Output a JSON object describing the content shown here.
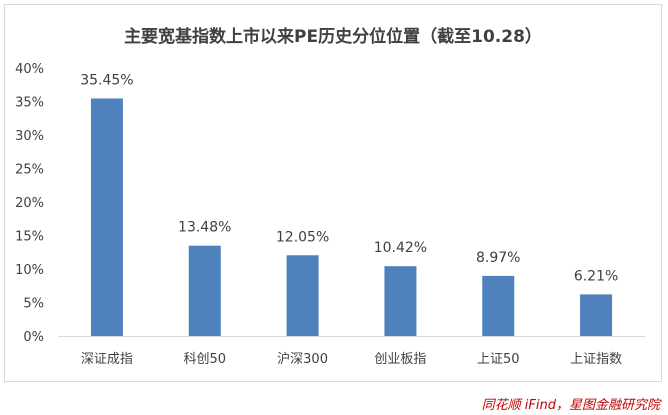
{
  "chart_data": {
    "type": "bar",
    "title": "主要宽基指数上市以来PE历史分位位置（截至10.28）",
    "categories": [
      "深证成指",
      "科创50",
      "沪深300",
      "创业板指",
      "上证50",
      "上证指数"
    ],
    "values": [
      35.45,
      13.48,
      12.05,
      10.42,
      8.97,
      6.21
    ],
    "value_labels": [
      "35.45%",
      "13.48%",
      "12.05%",
      "10.42%",
      "8.97%",
      "6.21%"
    ],
    "yticks": [
      "0%",
      "5%",
      "10%",
      "15%",
      "20%",
      "25%",
      "30%",
      "35%",
      "40%"
    ],
    "ylim": [
      0,
      40
    ],
    "xlabel": "",
    "ylabel": "",
    "grid": false,
    "bar_color": "#4f81bd"
  },
  "source": "同花顺 iFind，星图金融研究院"
}
